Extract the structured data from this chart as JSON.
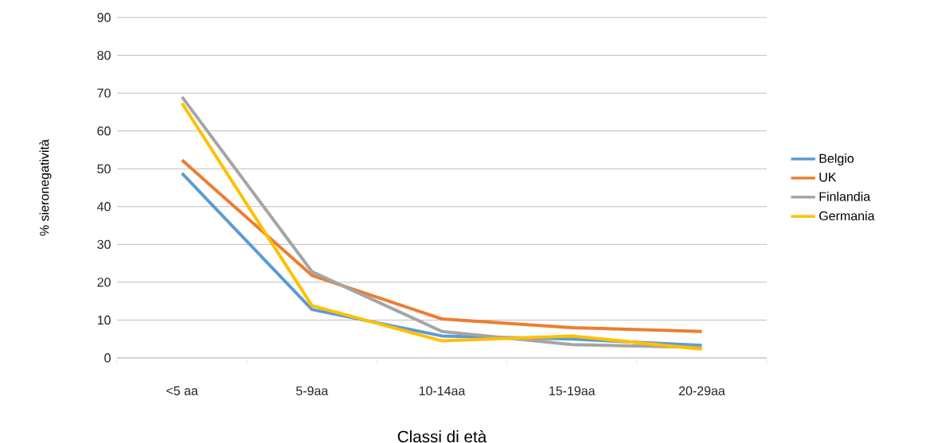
{
  "chart_data": {
    "type": "line",
    "xlabel": "Classi di età",
    "ylabel": "% sieronegatività",
    "categories": [
      "<5 aa",
      "5-9aa",
      "10-14aa",
      "15-19aa",
      "20-29aa"
    ],
    "series": [
      {
        "name": "Belgio",
        "color": "#5b9bd5",
        "values": [
          48.8,
          12.8,
          5.8,
          5.0,
          3.3
        ]
      },
      {
        "name": "UK",
        "color": "#ed7d31",
        "values": [
          52.3,
          21.8,
          10.3,
          8.0,
          7.0
        ]
      },
      {
        "name": "Finlandia",
        "color": "#a5a5a5",
        "values": [
          69.0,
          22.8,
          7.0,
          3.5,
          2.8
        ]
      },
      {
        "name": "Germania",
        "color": "#ffc000",
        "values": [
          67.3,
          13.8,
          4.5,
          5.8,
          2.3
        ]
      }
    ],
    "ylim": [
      0,
      90
    ],
    "yticks": [
      0,
      10,
      20,
      30,
      40,
      50,
      60,
      70,
      80,
      90
    ],
    "grid": "y",
    "legend": "right",
    "marker": "none",
    "line_style": "solid"
  }
}
